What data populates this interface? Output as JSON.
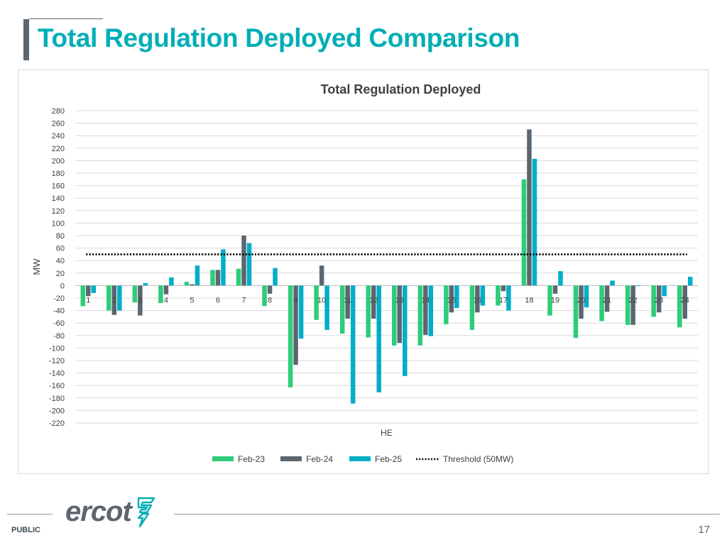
{
  "slide": {
    "title": "Total Regulation Deployed Comparison",
    "footer_label": "PUBLIC",
    "page_number": "17",
    "logo_text": "ercot"
  },
  "colors": {
    "title": "#00aeb5",
    "feb23": "#2ecc7a",
    "feb24": "#5b6770",
    "feb25": "#00aec7",
    "threshold": "#000000"
  },
  "chart_data": {
    "type": "bar",
    "title": "Total Regulation Deployed",
    "xlabel": "HE",
    "ylabel": "MW",
    "ylim": [
      -220,
      280
    ],
    "ytick_step": 20,
    "grid": true,
    "legend_position": "bottom",
    "categories": [
      "1",
      "2",
      "3",
      "4",
      "5",
      "6",
      "7",
      "8",
      "9",
      "10",
      "11",
      "12",
      "13",
      "14",
      "15",
      "16",
      "17",
      "18",
      "19",
      "20",
      "21",
      "22",
      "23",
      "24"
    ],
    "series": [
      {
        "name": "Feb-23",
        "color": "#2ecc7a",
        "values": [
          -33,
          -40,
          -27,
          -28,
          6,
          25,
          27,
          -33,
          -163,
          -55,
          -77,
          -83,
          -96,
          -96,
          -62,
          -71,
          -32,
          170,
          -48,
          -84,
          -57,
          -63,
          -50,
          -67
        ]
      },
      {
        "name": "Feb-24",
        "color": "#5b6770",
        "values": [
          -17,
          -47,
          -48,
          -14,
          2,
          25,
          80,
          -13,
          -127,
          32,
          -53,
          -53,
          -92,
          -79,
          -43,
          -43,
          -9,
          250,
          -13,
          -53,
          -42,
          -63,
          -43,
          -53
        ]
      },
      {
        "name": "Feb-25",
        "color": "#00aec7",
        "values": [
          -12,
          -40,
          4,
          13,
          32,
          58,
          68,
          28,
          -85,
          -71,
          -189,
          -171,
          -145,
          -81,
          -36,
          -32,
          -40,
          203,
          23,
          -35,
          8,
          -1,
          -17,
          14
        ]
      }
    ],
    "threshold": {
      "name": "Threshold (50MW)",
      "value": 50
    }
  }
}
